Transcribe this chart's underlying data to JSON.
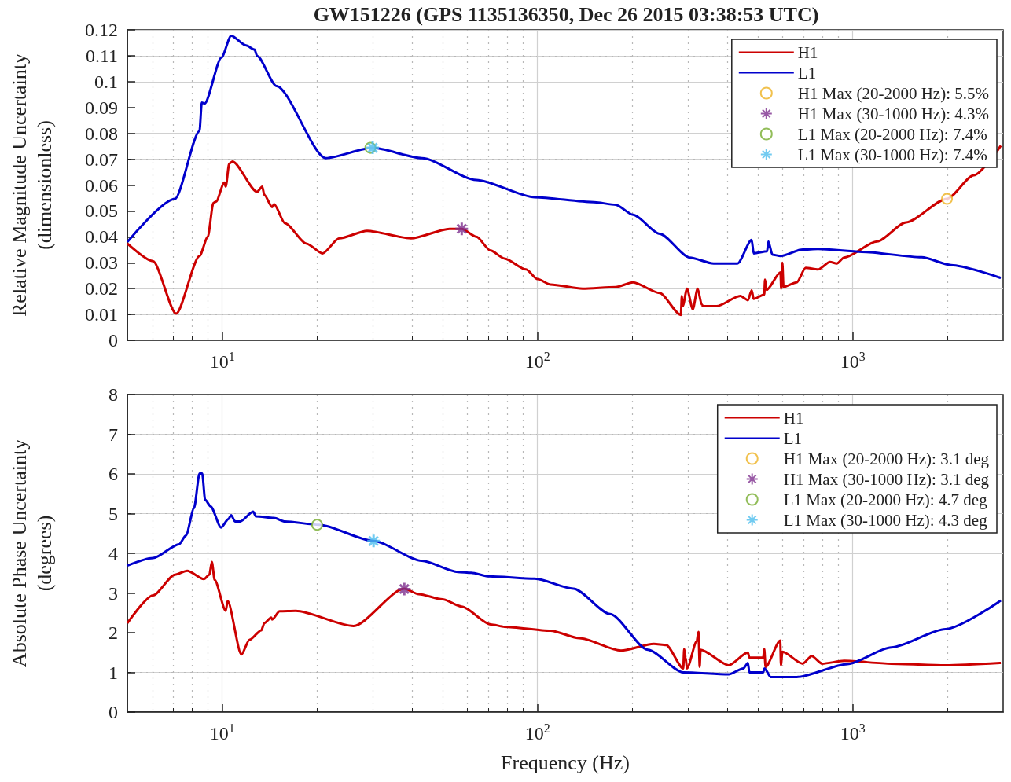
{
  "chart_data": [
    {
      "type": "line",
      "title": "GW151226 (GPS 1135136350, Dec 26 2015 03:38:53 UTC)",
      "ylabel": "Relative Magnitude Uncertainty\n(dimensionless)",
      "log": "x",
      "xlim": [
        5,
        3000
      ],
      "xticks": [
        {
          "value": 10,
          "label": "10$^{1}$"
        },
        {
          "value": 100,
          "label": "10$^{2}$"
        },
        {
          "value": 1000,
          "label": "10$^{3}$"
        }
      ],
      "ylim": [
        0,
        0.12
      ],
      "yticks": [
        0,
        0.01,
        0.02,
        0.03,
        0.04,
        0.05,
        0.06,
        0.07,
        0.08,
        0.09,
        0.1,
        0.11,
        0.12
      ],
      "grid": true,
      "legend": "top right",
      "series": [
        {
          "name": "H1",
          "color": "#cc0000",
          "x": [
            5,
            6.03,
            7.14,
            8.47,
            9.0,
            9.37,
            9.56,
            10.15,
            10.26,
            10.52,
            10.78,
            12.9,
            13.39,
            13.6,
            14.4,
            14.6,
            15.8,
            18.5,
            20.8,
            23.5,
            28.8,
            39.7,
            52.6,
            57.5,
            64,
            71,
            78.6,
            92,
            100,
            110,
            139,
            177,
            201,
            244,
            285,
            287,
            289,
            298,
            311,
            322,
            332,
            335,
            370,
            440,
            465,
            478,
            485,
            524,
            527,
            533,
            590,
            593,
            598,
            603,
            664,
            709,
            776,
            847,
            890,
            939,
            1194,
            1477,
            1991,
            2422,
            2950
          ],
          "values": [
            0.0374,
            0.0306,
            0.0103,
            0.0326,
            0.04,
            0.0531,
            0.0536,
            0.061,
            0.0594,
            0.0683,
            0.0691,
            0.0574,
            0.0594,
            0.0562,
            0.0515,
            0.0526,
            0.0453,
            0.0374,
            0.0336,
            0.0394,
            0.0423,
            0.0394,
            0.0431,
            0.0431,
            0.04,
            0.0347,
            0.0316,
            0.0274,
            0.0237,
            0.0216,
            0.02,
            0.0206,
            0.0224,
            0.0183,
            0.0098,
            0.0172,
            0.0132,
            0.02,
            0.012,
            0.02,
            0.0138,
            0.0132,
            0.0132,
            0.0172,
            0.0155,
            0.0194,
            0.016,
            0.0177,
            0.0235,
            0.0195,
            0.0263,
            0.02,
            0.03,
            0.0206,
            0.0224,
            0.028,
            0.0274,
            0.0303,
            0.0297,
            0.032,
            0.0382,
            0.0456,
            0.0547,
            0.0638,
            0.0752
          ]
        },
        {
          "name": "L1",
          "color": "#0000cc",
          "x": [
            5,
            7.08,
            8.47,
            8.61,
            8.79,
            9.94,
            10.67,
            11.9,
            12.66,
            12.9,
            14.86,
            21.3,
            30,
            43,
            64,
            98,
            151,
            177,
            201,
            244,
            304,
            362,
            431,
            478,
            485,
            535,
            540,
            556,
            590,
            694,
            776,
            1070,
            1654,
            2052,
            2950
          ],
          "values": [
            0.038,
            0.0547,
            0.0809,
            0.0919,
            0.0915,
            0.1093,
            0.1177,
            0.114,
            0.1124,
            0.1099,
            0.0983,
            0.0704,
            0.0744,
            0.0704,
            0.062,
            0.0553,
            0.0534,
            0.0524,
            0.0485,
            0.0412,
            0.032,
            0.0297,
            0.0297,
            0.0388,
            0.0336,
            0.0344,
            0.0382,
            0.0331,
            0.0326,
            0.0351,
            0.0353,
            0.0342,
            0.0321,
            0.0291,
            0.0241
          ]
        },
        {
          "name": "H1 Max (20-2000 Hz): 5.5%",
          "color": "#edb120",
          "type": "scatter",
          "marker": "circle",
          "x": [
            1991
          ],
          "values": [
            0.0547
          ]
        },
        {
          "name": "H1 Max (30-1000 Hz): 4.3%",
          "color": "#7e2f8e",
          "type": "scatter",
          "marker": "cross",
          "x": [
            57.5
          ],
          "values": [
            0.0431
          ]
        },
        {
          "name": "L1 Max (20-2000 Hz): 7.4%",
          "color": "#77ac30",
          "type": "scatter",
          "marker": "circle",
          "x": [
            29.5
          ],
          "values": [
            0.0744
          ]
        },
        {
          "name": "L1 Max (30-1000 Hz): 7.4%",
          "color": "#4dbeee",
          "type": "scatter",
          "marker": "cross",
          "x": [
            30
          ],
          "values": [
            0.0744
          ]
        }
      ]
    },
    {
      "type": "line",
      "xlabel": "Frequency (Hz)",
      "ylabel": "Absolute Phase Uncertainty\n(degrees)",
      "log": "x",
      "xlim": [
        5,
        3000
      ],
      "xticks": [
        {
          "value": 10,
          "label": "10$^{1}$"
        },
        {
          "value": 100,
          "label": "10$^{2}$"
        },
        {
          "value": 1000,
          "label": "10$^{3}$"
        }
      ],
      "ylim": [
        0,
        8
      ],
      "yticks": [
        0,
        1,
        2,
        3,
        4,
        5,
        6,
        7,
        8
      ],
      "grid": true,
      "legend": "top right",
      "series": [
        {
          "name": "H1",
          "color": "#cc0000",
          "x": [
            5,
            6.03,
            7.08,
            7.74,
            8.75,
            9.1,
            9.27,
            9.46,
            10.26,
            10.4,
            11.5,
            12.2,
            13.3,
            13.6,
            14.3,
            14.4,
            15.2,
            17.1,
            26.1,
            37.8,
            42,
            50,
            57.5,
            71,
            78.6,
            110,
            136,
            184,
            234,
            256,
            290,
            292,
            295,
            298,
            320,
            324,
            327,
            329,
            404,
            465,
            470,
            520,
            524,
            529,
            589,
            592,
            598,
            694,
            741,
            800,
            939,
            1325,
            1968,
            2950
          ],
          "values": [
            2.24,
            2.94,
            3.46,
            3.56,
            3.35,
            3.46,
            3.78,
            3.33,
            2.55,
            2.8,
            1.45,
            1.82,
            2.06,
            2.24,
            2.38,
            2.33,
            2.54,
            2.55,
            2.17,
            3.11,
            2.97,
            2.84,
            2.66,
            2.21,
            2.15,
            2.05,
            1.86,
            1.55,
            1.72,
            1.69,
            1.1,
            1.59,
            1.37,
            1.1,
            1.78,
            2.02,
            1.14,
            1.57,
            1.18,
            1.5,
            1.37,
            1.37,
            1.59,
            1.14,
            1.8,
            1.18,
            1.52,
            1.22,
            1.41,
            1.22,
            1.29,
            1.22,
            1.18,
            1.24
          ]
        },
        {
          "name": "L1",
          "color": "#0000cc",
          "x": [
            5,
            6.03,
            7.3,
            7.67,
            8.14,
            8.47,
            8.64,
            8.82,
            9.19,
            9.91,
            10.46,
            10.67,
            10.99,
            11.4,
            12.53,
            12.8,
            14.6,
            15.8,
            20.3,
            30.2,
            43,
            55.9,
            61.6,
            70,
            98,
            130,
            170,
            224,
            290,
            404,
            450,
            465,
            470,
            520,
            525,
            550,
            664,
            962,
            1325,
            1968,
            2950
          ],
          "values": [
            3.69,
            3.88,
            4.23,
            4.45,
            5.14,
            6.01,
            6.01,
            5.35,
            5.18,
            4.65,
            4.86,
            4.96,
            4.8,
            4.8,
            5.05,
            4.93,
            4.89,
            4.8,
            4.72,
            4.31,
            3.81,
            3.53,
            3.51,
            3.42,
            3.36,
            3.11,
            2.47,
            1.57,
            1.0,
            0.95,
            1.1,
            1.24,
            1.0,
            1.0,
            1.1,
            0.88,
            0.88,
            1.21,
            1.63,
            2.09,
            2.81
          ]
        },
        {
          "name": "H1 Max (20-2000 Hz): 3.1 deg",
          "color": "#edb120",
          "type": "scatter",
          "marker": "circle",
          "values": [
            null
          ]
        },
        {
          "name": "H1 Max (30-1000 Hz): 3.1 deg",
          "color": "#7e2f8e",
          "type": "scatter",
          "marker": "cross",
          "x": [
            37.8
          ],
          "values": [
            3.1
          ]
        },
        {
          "name": "L1 Max (20-2000 Hz): 4.7 deg",
          "color": "#77ac30",
          "type": "scatter",
          "marker": "circle",
          "x": [
            20
          ],
          "values": [
            4.72
          ]
        },
        {
          "name": "L1 Max (30-1000 Hz): 4.3 deg",
          "color": "#4dbeee",
          "type": "scatter",
          "marker": "cross",
          "x": [
            30.2
          ],
          "values": [
            4.31
          ]
        }
      ]
    }
  ]
}
